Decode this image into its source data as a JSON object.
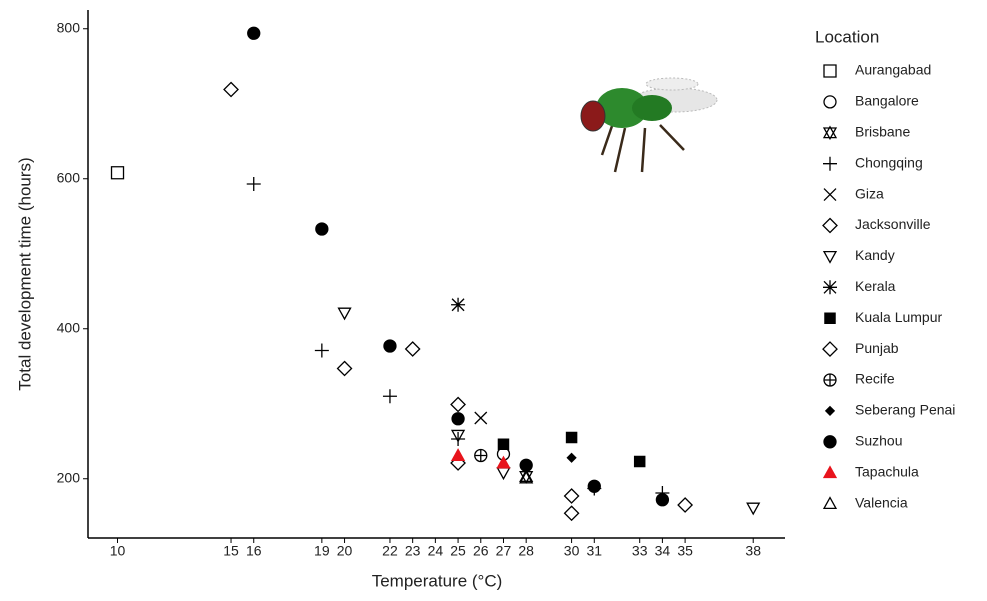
{
  "chart_data": {
    "type": "scatter",
    "xlabel": "Temperature (°C)",
    "ylabel": "Total development time (hours)",
    "legend_title": "Location",
    "xlim": [
      8.7,
      39.4
    ],
    "ylim": [
      121,
      825
    ],
    "xticks": [
      10,
      15,
      16,
      19,
      20,
      22,
      23,
      24,
      25,
      26,
      27,
      28,
      30,
      31,
      33,
      34,
      35,
      38
    ],
    "yticks": [
      200,
      400,
      600,
      800
    ],
    "series": [
      {
        "name": "Aurangabad",
        "marker": "square-open",
        "color": "#000000",
        "x": [
          10
        ],
        "values": [
          608
        ]
      },
      {
        "name": "Bangalore",
        "marker": "circle-open",
        "color": "#000000",
        "x": [
          27
        ],
        "values": [
          233
        ]
      },
      {
        "name": "Brisbane",
        "marker": "star-of-david",
        "color": "#000000",
        "x": [
          28
        ],
        "values": [
          203
        ]
      },
      {
        "name": "Chongqing",
        "marker": "plus",
        "color": "#000000",
        "x": [
          16,
          19,
          22,
          25,
          31,
          34
        ],
        "values": [
          593,
          371,
          310,
          253,
          187,
          181
        ]
      },
      {
        "name": "Giza",
        "marker": "cross",
        "color": "#000000",
        "x": [
          26
        ],
        "values": [
          281
        ]
      },
      {
        "name": "Jacksonville",
        "marker": "diamond-open",
        "color": "#000000",
        "x": [
          15,
          20,
          25,
          30,
          35
        ],
        "values": [
          719,
          347,
          221,
          177,
          165
        ]
      },
      {
        "name": "Kandy",
        "marker": "triangle-down-open",
        "color": "#000000",
        "x": [
          20,
          25,
          27,
          38
        ],
        "values": [
          421,
          258,
          208,
          161
        ]
      },
      {
        "name": "Kerala",
        "marker": "asterisk",
        "color": "#000000",
        "x": [
          25
        ],
        "values": [
          432
        ]
      },
      {
        "name": "Kuala Lumpur",
        "marker": "square-filled",
        "color": "#000000",
        "x": [
          27,
          30,
          33
        ],
        "values": [
          246,
          255,
          223
        ]
      },
      {
        "name": "Punjab",
        "marker": "diamond-open",
        "color": "#000000",
        "x": [
          23,
          25,
          30
        ],
        "values": [
          373,
          299,
          154
        ]
      },
      {
        "name": "Recife",
        "marker": "circle-plus",
        "color": "#000000",
        "x": [
          26
        ],
        "values": [
          231
        ]
      },
      {
        "name": "Seberang Penai",
        "marker": "diamond-filled",
        "color": "#000000",
        "x": [
          30
        ],
        "values": [
          228
        ]
      },
      {
        "name": "Suzhou",
        "marker": "circle-filled",
        "color": "#000000",
        "x": [
          16,
          19,
          22,
          25,
          28,
          31,
          34
        ],
        "values": [
          794,
          533,
          377,
          280,
          218,
          190,
          172
        ]
      },
      {
        "name": "Tapachula",
        "marker": "triangle-filled",
        "color": "#e8141c",
        "x": [
          25,
          27
        ],
        "values": [
          231,
          221
        ]
      },
      {
        "name": "Valencia",
        "marker": "triangle-open",
        "color": "#000000",
        "x": [
          28
        ],
        "values": [
          201
        ]
      }
    ]
  }
}
